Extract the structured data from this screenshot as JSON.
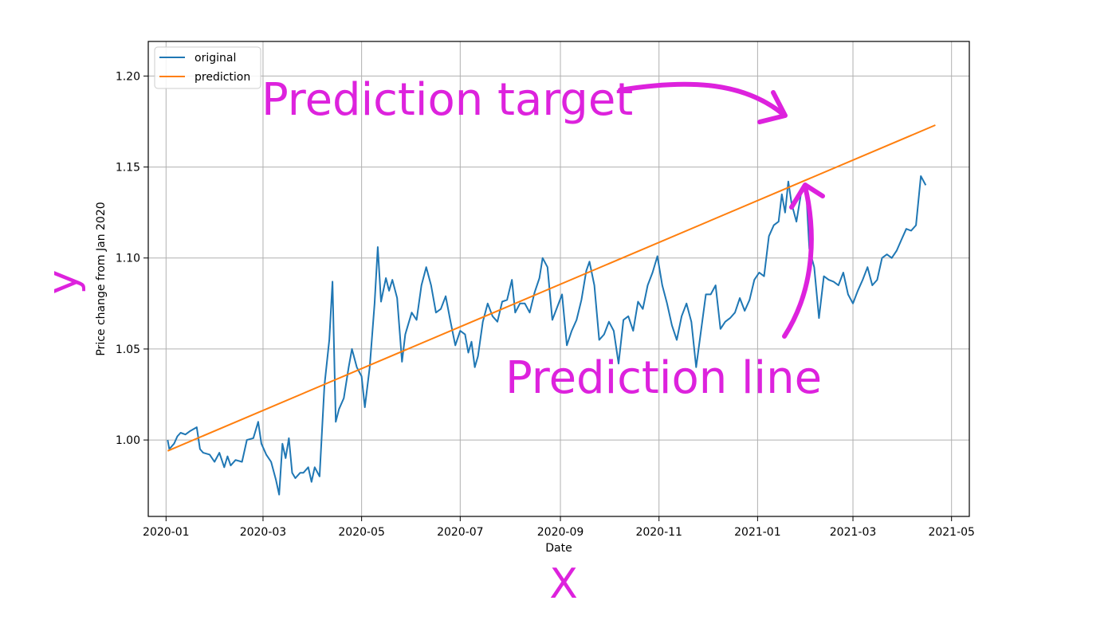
{
  "chart_data": {
    "type": "line",
    "xlabel": "Date",
    "ylabel": "Price change from Jan 2020",
    "x_ticks": [
      "2020-01",
      "2020-03",
      "2020-05",
      "2020-07",
      "2020-09",
      "2020-11",
      "2021-01",
      "2021-03",
      "2021-05"
    ],
    "y_ticks": [
      "1.00",
      "1.05",
      "1.10",
      "1.15",
      "1.20"
    ],
    "ylim": [
      0.958,
      1.219
    ],
    "xlim": [
      "2019-12-21",
      "2021-05-12"
    ],
    "grid": true,
    "legend_position": "top-left",
    "series": [
      {
        "name": "original",
        "color": "#1f77b4",
        "points": [
          [
            "2020-01-02",
            1.0
          ],
          [
            "2020-01-03",
            0.995
          ],
          [
            "2020-01-06",
            0.998
          ],
          [
            "2020-01-08",
            1.002
          ],
          [
            "2020-01-10",
            1.004
          ],
          [
            "2020-01-13",
            1.003
          ],
          [
            "2020-01-16",
            1.005
          ],
          [
            "2020-01-20",
            1.007
          ],
          [
            "2020-01-22",
            0.995
          ],
          [
            "2020-01-24",
            0.993
          ],
          [
            "2020-01-28",
            0.992
          ],
          [
            "2020-01-31",
            0.988
          ],
          [
            "2020-02-03",
            0.993
          ],
          [
            "2020-02-06",
            0.985
          ],
          [
            "2020-02-08",
            0.991
          ],
          [
            "2020-02-10",
            0.986
          ],
          [
            "2020-02-13",
            0.989
          ],
          [
            "2020-02-17",
            0.988
          ],
          [
            "2020-02-20",
            1.0
          ],
          [
            "2020-02-24",
            1.001
          ],
          [
            "2020-02-27",
            1.01
          ],
          [
            "2020-02-29",
            0.998
          ],
          [
            "2020-03-03",
            0.992
          ],
          [
            "2020-03-06",
            0.988
          ],
          [
            "2020-03-09",
            0.978
          ],
          [
            "2020-03-11",
            0.97
          ],
          [
            "2020-03-13",
            0.998
          ],
          [
            "2020-03-15",
            0.99
          ],
          [
            "2020-03-17",
            1.001
          ],
          [
            "2020-03-19",
            0.982
          ],
          [
            "2020-03-21",
            0.979
          ],
          [
            "2020-03-24",
            0.982
          ],
          [
            "2020-03-26",
            0.982
          ],
          [
            "2020-03-29",
            0.985
          ],
          [
            "2020-03-31",
            0.977
          ],
          [
            "2020-04-02",
            0.985
          ],
          [
            "2020-04-05",
            0.98
          ],
          [
            "2020-04-08",
            1.03
          ],
          [
            "2020-04-11",
            1.055
          ],
          [
            "2020-04-13",
            1.087
          ],
          [
            "2020-04-15",
            1.01
          ],
          [
            "2020-04-17",
            1.017
          ],
          [
            "2020-04-20",
            1.023
          ],
          [
            "2020-04-23",
            1.04
          ],
          [
            "2020-04-25",
            1.05
          ],
          [
            "2020-04-28",
            1.04
          ],
          [
            "2020-05-01",
            1.035
          ],
          [
            "2020-05-03",
            1.018
          ],
          [
            "2020-05-06",
            1.04
          ],
          [
            "2020-05-09",
            1.075
          ],
          [
            "2020-05-11",
            1.106
          ],
          [
            "2020-05-13",
            1.076
          ],
          [
            "2020-05-16",
            1.089
          ],
          [
            "2020-05-18",
            1.082
          ],
          [
            "2020-05-20",
            1.088
          ],
          [
            "2020-05-23",
            1.078
          ],
          [
            "2020-05-26",
            1.043
          ],
          [
            "2020-05-28",
            1.058
          ],
          [
            "2020-06-01",
            1.07
          ],
          [
            "2020-06-04",
            1.066
          ],
          [
            "2020-06-07",
            1.085
          ],
          [
            "2020-06-10",
            1.095
          ],
          [
            "2020-06-13",
            1.085
          ],
          [
            "2020-06-16",
            1.07
          ],
          [
            "2020-06-19",
            1.072
          ],
          [
            "2020-06-22",
            1.079
          ],
          [
            "2020-06-25",
            1.065
          ],
          [
            "2020-06-28",
            1.052
          ],
          [
            "2020-07-01",
            1.06
          ],
          [
            "2020-07-04",
            1.058
          ],
          [
            "2020-07-06",
            1.048
          ],
          [
            "2020-07-08",
            1.054
          ],
          [
            "2020-07-10",
            1.04
          ],
          [
            "2020-07-12",
            1.046
          ],
          [
            "2020-07-15",
            1.065
          ],
          [
            "2020-07-18",
            1.075
          ],
          [
            "2020-07-21",
            1.068
          ],
          [
            "2020-07-24",
            1.065
          ],
          [
            "2020-07-27",
            1.076
          ],
          [
            "2020-07-30",
            1.077
          ],
          [
            "2020-08-02",
            1.088
          ],
          [
            "2020-08-04",
            1.07
          ],
          [
            "2020-08-07",
            1.075
          ],
          [
            "2020-08-10",
            1.075
          ],
          [
            "2020-08-13",
            1.07
          ],
          [
            "2020-08-16",
            1.081
          ],
          [
            "2020-08-19",
            1.089
          ],
          [
            "2020-08-21",
            1.1
          ],
          [
            "2020-08-24",
            1.095
          ],
          [
            "2020-08-27",
            1.066
          ],
          [
            "2020-08-30",
            1.073
          ],
          [
            "2020-09-02",
            1.08
          ],
          [
            "2020-09-05",
            1.052
          ],
          [
            "2020-09-08",
            1.06
          ],
          [
            "2020-09-11",
            1.066
          ],
          [
            "2020-09-14",
            1.077
          ],
          [
            "2020-09-17",
            1.093
          ],
          [
            "2020-09-19",
            1.098
          ],
          [
            "2020-09-22",
            1.085
          ],
          [
            "2020-09-25",
            1.055
          ],
          [
            "2020-09-28",
            1.058
          ],
          [
            "2020-10-01",
            1.065
          ],
          [
            "2020-10-04",
            1.06
          ],
          [
            "2020-10-07",
            1.042
          ],
          [
            "2020-10-10",
            1.066
          ],
          [
            "2020-10-13",
            1.068
          ],
          [
            "2020-10-16",
            1.06
          ],
          [
            "2020-10-19",
            1.076
          ],
          [
            "2020-10-22",
            1.072
          ],
          [
            "2020-10-25",
            1.085
          ],
          [
            "2020-10-28",
            1.092
          ],
          [
            "2020-10-31",
            1.101
          ],
          [
            "2020-11-03",
            1.085
          ],
          [
            "2020-11-06",
            1.075
          ],
          [
            "2020-11-09",
            1.063
          ],
          [
            "2020-11-12",
            1.055
          ],
          [
            "2020-11-15",
            1.068
          ],
          [
            "2020-11-18",
            1.075
          ],
          [
            "2020-11-21",
            1.065
          ],
          [
            "2020-11-24",
            1.04
          ],
          [
            "2020-11-27",
            1.06
          ],
          [
            "2020-11-30",
            1.08
          ],
          [
            "2020-12-03",
            1.08
          ],
          [
            "2020-12-06",
            1.085
          ],
          [
            "2020-12-09",
            1.061
          ],
          [
            "2020-12-12",
            1.065
          ],
          [
            "2020-12-15",
            1.067
          ],
          [
            "2020-12-18",
            1.07
          ],
          [
            "2020-12-21",
            1.078
          ],
          [
            "2020-12-24",
            1.071
          ],
          [
            "2020-12-27",
            1.077
          ],
          [
            "2020-12-30",
            1.088
          ],
          [
            "2021-01-02",
            1.092
          ],
          [
            "2021-01-05",
            1.09
          ],
          [
            "2021-01-08",
            1.112
          ],
          [
            "2021-01-11",
            1.118
          ],
          [
            "2021-01-14",
            1.12
          ],
          [
            "2021-01-16",
            1.135
          ],
          [
            "2021-01-18",
            1.125
          ],
          [
            "2021-01-20",
            1.142
          ],
          [
            "2021-01-22",
            1.13
          ],
          [
            "2021-01-25",
            1.12
          ],
          [
            "2021-01-28",
            1.136
          ],
          [
            "2021-01-31",
            1.138
          ],
          [
            "2021-02-02",
            1.105
          ],
          [
            "2021-02-05",
            1.095
          ],
          [
            "2021-02-08",
            1.067
          ],
          [
            "2021-02-11",
            1.09
          ],
          [
            "2021-02-14",
            1.088
          ],
          [
            "2021-02-17",
            1.087
          ],
          [
            "2021-02-20",
            1.085
          ],
          [
            "2021-02-23",
            1.092
          ],
          [
            "2021-02-26",
            1.08
          ],
          [
            "2021-03-01",
            1.075
          ],
          [
            "2021-03-04",
            1.082
          ],
          [
            "2021-03-07",
            1.088
          ],
          [
            "2021-03-10",
            1.095
          ]
        ],
        "points_continued": [
          [
            "2021-03-13",
            1.085
          ],
          [
            "2021-03-16",
            1.088
          ],
          [
            "2021-03-19",
            1.1
          ],
          [
            "2021-03-22",
            1.102
          ],
          [
            "2021-03-25",
            1.1
          ],
          [
            "2021-03-28",
            1.104
          ],
          [
            "2021-03-31",
            1.11
          ],
          [
            "2021-04-03",
            1.116
          ],
          [
            "2021-04-06",
            1.115
          ],
          [
            "2021-04-09",
            1.118
          ],
          [
            "2021-04-12",
            1.145
          ],
          [
            "2021-04-15",
            1.14
          ]
        ]
      },
      {
        "name": "prediction",
        "color": "#ff7f0e",
        "points": [
          [
            "2020-01-02",
            0.994
          ],
          [
            "2021-04-21",
            1.173
          ]
        ]
      }
    ]
  },
  "annotations": {
    "target_label": "Prediction target",
    "line_label": "Prediction line",
    "y_label": "y",
    "x_label": "X"
  }
}
